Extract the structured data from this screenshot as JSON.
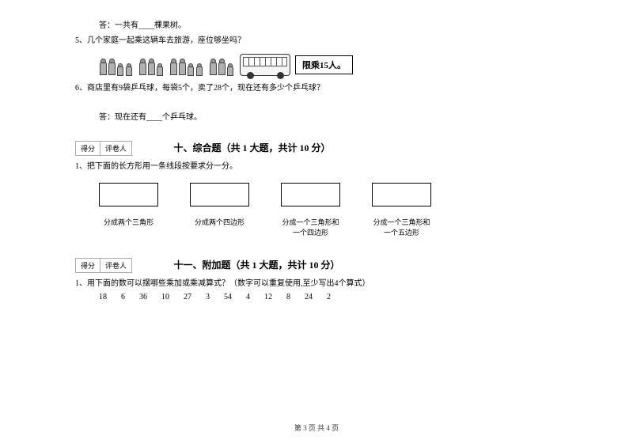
{
  "q4_answer": "答：一共有____棵果树。",
  "q5": "5、几个家庭一起乘这辆车去旅游，座位够坐吗？",
  "bus_limit": "限乘15人。",
  "q6": "6、商店里有9袋乒乓球，每袋5个，卖了28个，现在还有多少个乒乓球？",
  "q6_answer": "答：现在还有____个乒乓球。",
  "score_labels": {
    "a": "得分",
    "b": "评卷人"
  },
  "section10": {
    "title": "十、综合题（共 1 大题，共计 10 分）",
    "q1": "1、把下面的长方形用一条线段按要求分一分。",
    "labels": {
      "r1": "分成两个三角形",
      "r2": "分成两个四边形",
      "r3_l1": "分成一个三角形和",
      "r3_l2": "一个四边形",
      "r4_l1": "分成一个三角形和",
      "r4_l2": "一个五边形"
    }
  },
  "section11": {
    "title": "十一、附加题（共 1 大题，共计 10 分）",
    "q1": "1、用下面的数可以摆哪些乘加或乘减算式？（数字可以重复使用,至少写出4个算式）",
    "numbers": [
      "18",
      "6",
      "36",
      "10",
      "27",
      "3",
      "54",
      "4",
      "12",
      "8",
      "24",
      "2"
    ]
  },
  "footer": "第 3 页 共 4 页"
}
